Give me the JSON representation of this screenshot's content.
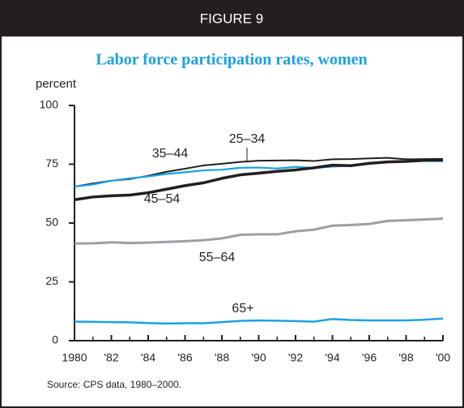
{
  "chart_data": {
    "type": "line",
    "header": "FIGURE 9",
    "title": "Labor force participation rates, women",
    "ylabel": "percent",
    "source": "Source: CPS data, 1980–2000.",
    "x": [
      1980,
      1981,
      1982,
      1983,
      1984,
      1985,
      1986,
      1987,
      1988,
      1989,
      1990,
      1991,
      1992,
      1993,
      1994,
      1995,
      1996,
      1997,
      1998,
      1999,
      2000
    ],
    "series": [
      {
        "name": "35–44",
        "color": "#231f20",
        "values": [
          65.5,
          66.8,
          68.0,
          68.7,
          70.1,
          71.8,
          73.1,
          74.5,
          75.2,
          76.0,
          76.5,
          76.6,
          76.7,
          76.4,
          77.1,
          77.2,
          77.5,
          77.7,
          77.1,
          77.2,
          77.3
        ]
      },
      {
        "name": "25–34",
        "color": "#1ba1e2",
        "values": [
          65.5,
          66.4,
          68.0,
          69.0,
          69.8,
          70.9,
          71.6,
          72.4,
          72.7,
          73.5,
          73.6,
          73.2,
          73.9,
          73.4,
          74.0,
          74.4,
          75.2,
          76.0,
          76.3,
          76.4,
          76.3
        ]
      },
      {
        "name": "45–54",
        "color": "#231f20",
        "values": [
          59.9,
          61.1,
          61.6,
          61.9,
          62.9,
          64.4,
          65.9,
          67.1,
          69.0,
          70.5,
          71.2,
          72.0,
          72.6,
          73.5,
          74.6,
          74.4,
          75.4,
          76.0,
          76.2,
          76.7,
          76.8
        ]
      },
      {
        "name": "55–64",
        "color": "#9d9fa2",
        "values": [
          41.3,
          41.4,
          41.8,
          41.5,
          41.7,
          42.0,
          42.3,
          42.7,
          43.5,
          45.0,
          45.2,
          45.2,
          46.5,
          47.2,
          48.9,
          49.2,
          49.6,
          50.9,
          51.2,
          51.5,
          51.9
        ]
      },
      {
        "name": "65+",
        "color": "#1ba1e2",
        "values": [
          8.1,
          8.0,
          7.9,
          7.8,
          7.5,
          7.3,
          7.4,
          7.4,
          7.9,
          8.4,
          8.6,
          8.5,
          8.3,
          8.1,
          9.2,
          8.8,
          8.6,
          8.6,
          8.6,
          8.9,
          9.4
        ]
      }
    ],
    "xlim": [
      1980,
      2000
    ],
    "xticks": [
      1980,
      {
        "value": 1982,
        "label": "'82"
      },
      {
        "value": 1984,
        "label": "'84"
      },
      {
        "value": 1986,
        "label": "'86"
      },
      {
        "value": 1988,
        "label": "'88"
      },
      {
        "value": 1990,
        "label": "'90"
      },
      {
        "value": 1992,
        "label": "'92"
      },
      {
        "value": 1994,
        "label": "'94"
      },
      {
        "value": 1996,
        "label": "'96"
      },
      {
        "value": 1998,
        "label": "'98"
      },
      {
        "value": 2000,
        "label": "'00"
      }
    ],
    "xminorticks": [
      1981,
      1983,
      1985,
      1987,
      1989,
      1991,
      1993,
      1995,
      1997,
      1999
    ],
    "ylim": [
      0,
      100
    ],
    "yticks": [
      0,
      25,
      50,
      75,
      100
    ]
  }
}
